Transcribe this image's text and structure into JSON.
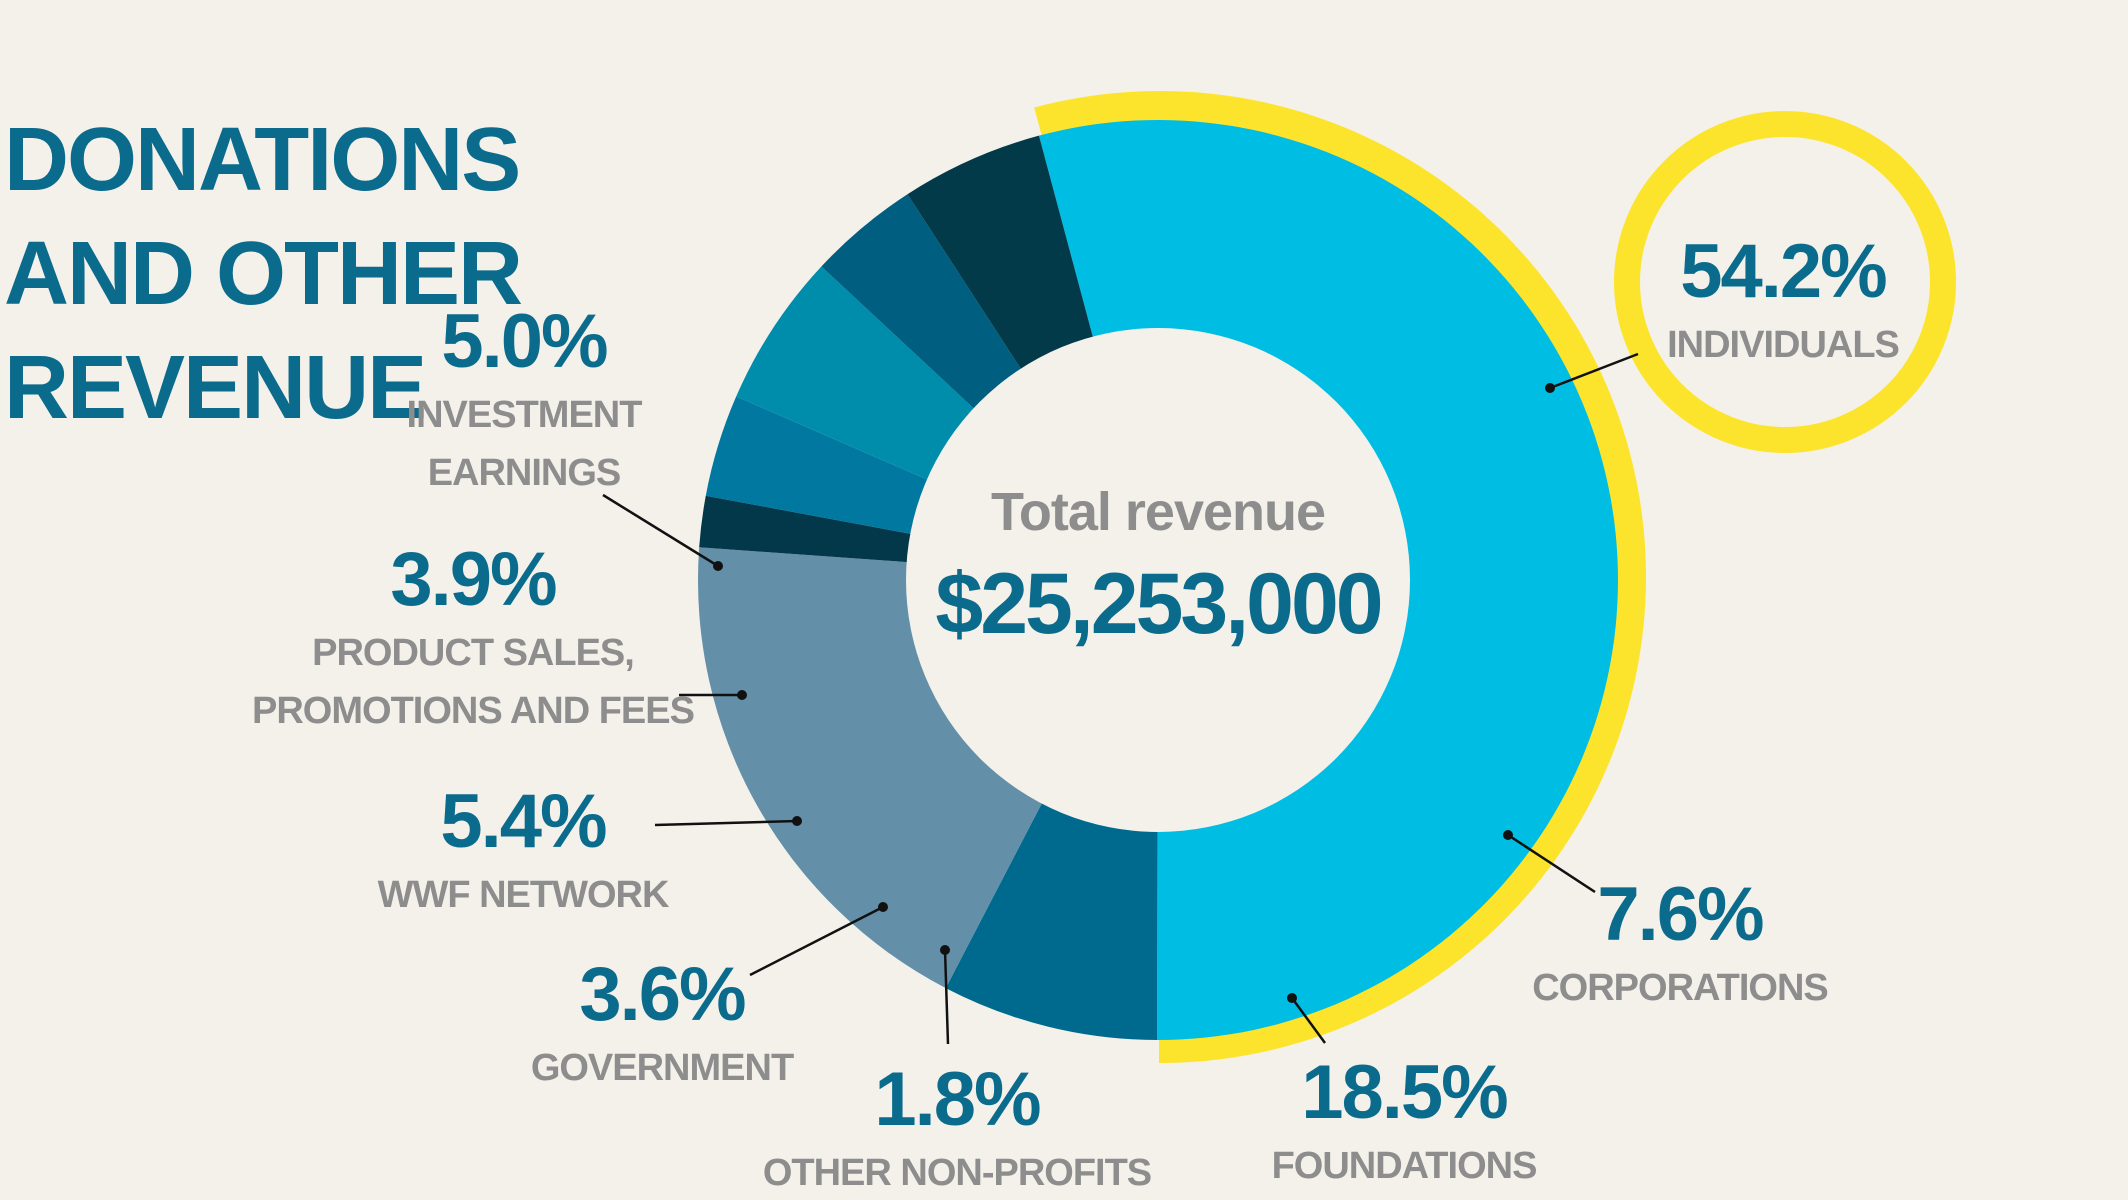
{
  "chart_data": {
    "type": "pie",
    "title": [
      "DONATIONS",
      "AND OTHER",
      "REVENUE"
    ],
    "center": {
      "label": "Total revenue",
      "value": "$25,253,000"
    },
    "slices": [
      {
        "percent_label": "54.2%",
        "category_lines": [
          "INDIVIDUALS"
        ],
        "value": 54.2,
        "color": "#00bde3",
        "highlighted": true
      },
      {
        "percent_label": "7.6%",
        "category_lines": [
          "CORPORATIONS"
        ],
        "value": 7.6,
        "color": "#006a8e"
      },
      {
        "percent_label": "18.5%",
        "category_lines": [
          "FOUNDATIONS"
        ],
        "value": 18.5,
        "color": "#6390a8"
      },
      {
        "percent_label": "1.8%",
        "category_lines": [
          "OTHER NON-PROFITS"
        ],
        "value": 1.8,
        "color": "#02384a"
      },
      {
        "percent_label": "3.6%",
        "category_lines": [
          "GOVERNMENT"
        ],
        "value": 3.6,
        "color": "#00789f"
      },
      {
        "percent_label": "5.4%",
        "category_lines": [
          "WWF NETWORK"
        ],
        "value": 5.4,
        "color": "#008dac"
      },
      {
        "percent_label": "3.9%",
        "category_lines": [
          "PRODUCT SALES,",
          "PROMOTIONS AND FEES"
        ],
        "value": 3.9,
        "color": "#005f80"
      },
      {
        "percent_label": "5.0%",
        "category_lines": [
          "INVESTMENT",
          "EARNINGS"
        ],
        "value": 5.0,
        "color": "#023a4a"
      }
    ]
  },
  "colors": {
    "background": "#f3f1ea",
    "title": "#0b6b8c",
    "percent": "#0b6b8c",
    "category": "#8d8d8d",
    "center_label": "#8d8d8d",
    "center_value": "#0b6b8c",
    "highlight_ring": "#fde42c",
    "leader_line": "#111111"
  }
}
